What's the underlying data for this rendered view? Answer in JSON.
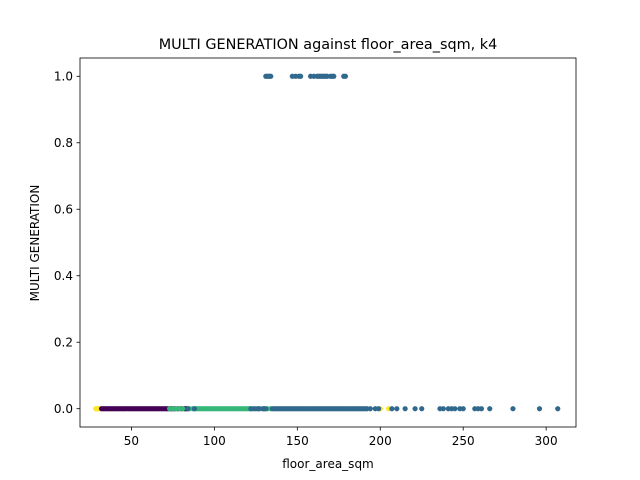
{
  "chart_data": {
    "type": "scatter",
    "title": "MULTI GENERATION against floor_area_sqm, k4",
    "xlabel": "floor_area_sqm",
    "ylabel": "MULTI GENERATION",
    "xlim": [
      19,
      318
    ],
    "ylim": [
      -0.055,
      1.055
    ],
    "xticks": [
      50,
      100,
      150,
      200,
      250,
      300
    ],
    "yticks": [
      0.0,
      0.2,
      0.4,
      0.6,
      0.8,
      1.0
    ],
    "xtick_labels": [
      "50",
      "100",
      "150",
      "200",
      "250",
      "300"
    ],
    "ytick_labels": [
      "0.0",
      "0.2",
      "0.4",
      "0.6",
      "0.8",
      "1.0"
    ],
    "grid": false,
    "legend": "none",
    "series": [
      {
        "color": "#fde725",
        "points": [
          [
            28.5,
            0
          ],
          [
            29,
            0
          ],
          [
            29.5,
            0
          ],
          [
            30,
            0
          ],
          [
            30.5,
            0
          ],
          [
            31,
            0
          ],
          [
            32,
            0
          ],
          [
            200,
            0
          ],
          [
            205,
            0
          ]
        ]
      },
      {
        "color": "#440154",
        "points": [
          [
            32,
            0
          ],
          [
            33,
            0
          ],
          [
            34,
            0
          ],
          [
            35,
            0
          ],
          [
            36,
            0
          ],
          [
            37,
            0
          ],
          [
            38,
            0
          ],
          [
            39,
            0
          ],
          [
            40,
            0
          ],
          [
            41,
            0
          ],
          [
            42,
            0
          ],
          [
            43,
            0
          ],
          [
            44,
            0
          ],
          [
            45,
            0
          ],
          [
            46,
            0
          ],
          [
            47,
            0
          ],
          [
            48,
            0
          ],
          [
            49,
            0
          ],
          [
            50,
            0
          ],
          [
            51,
            0
          ],
          [
            52,
            0
          ],
          [
            53,
            0
          ],
          [
            54,
            0
          ],
          [
            55,
            0
          ],
          [
            56,
            0
          ],
          [
            57,
            0
          ],
          [
            58,
            0
          ],
          [
            59,
            0
          ],
          [
            60,
            0
          ],
          [
            61,
            0
          ],
          [
            62,
            0
          ],
          [
            63,
            0
          ],
          [
            64,
            0
          ],
          [
            65,
            0
          ],
          [
            66,
            0
          ],
          [
            67,
            0
          ],
          [
            68,
            0
          ],
          [
            69,
            0
          ],
          [
            70,
            0
          ],
          [
            71,
            0
          ],
          [
            72,
            0
          ],
          [
            73,
            0
          ],
          [
            74,
            0
          ],
          [
            75,
            0
          ],
          [
            76,
            0
          ],
          [
            78,
            0
          ],
          [
            80,
            0
          ],
          [
            82,
            0
          ],
          [
            83,
            0
          ],
          [
            84,
            0
          ]
        ]
      },
      {
        "color": "#35b779",
        "points": [
          [
            73,
            0
          ],
          [
            75,
            0
          ],
          [
            77,
            0
          ],
          [
            79,
            0
          ],
          [
            81,
            0
          ],
          [
            85,
            0
          ],
          [
            87,
            0
          ],
          [
            88,
            0
          ],
          [
            89,
            0
          ],
          [
            90,
            0
          ],
          [
            91,
            0
          ],
          [
            92,
            0
          ],
          [
            93,
            0
          ],
          [
            94,
            0
          ],
          [
            95,
            0
          ],
          [
            96,
            0
          ],
          [
            97,
            0
          ],
          [
            98,
            0
          ],
          [
            99,
            0
          ],
          [
            100,
            0
          ],
          [
            101,
            0
          ],
          [
            102,
            0
          ],
          [
            103,
            0
          ],
          [
            104,
            0
          ],
          [
            105,
            0
          ],
          [
            106,
            0
          ],
          [
            107,
            0
          ],
          [
            108,
            0
          ],
          [
            109,
            0
          ],
          [
            110,
            0
          ],
          [
            111,
            0
          ],
          [
            112,
            0
          ],
          [
            113,
            0
          ],
          [
            114,
            0
          ],
          [
            115,
            0
          ],
          [
            116,
            0
          ],
          [
            117,
            0
          ],
          [
            118,
            0
          ],
          [
            119,
            0
          ],
          [
            120,
            0
          ],
          [
            121,
            0
          ],
          [
            122,
            0
          ],
          [
            123,
            0
          ],
          [
            125,
            0
          ],
          [
            127,
            0
          ],
          [
            130,
            0
          ],
          [
            132,
            0
          ],
          [
            134,
            0
          ]
        ]
      },
      {
        "color": "#31688e",
        "points": [
          [
            84,
            0
          ],
          [
            88,
            0
          ],
          [
            122,
            0
          ],
          [
            124,
            0
          ],
          [
            126,
            0
          ],
          [
            127,
            0
          ],
          [
            129,
            0
          ],
          [
            130,
            0
          ],
          [
            131,
            0
          ],
          [
            135,
            0
          ],
          [
            136,
            0
          ],
          [
            137,
            0
          ],
          [
            138,
            0
          ],
          [
            139,
            0
          ],
          [
            140,
            0
          ],
          [
            141,
            0
          ],
          [
            142,
            0
          ],
          [
            143,
            0
          ],
          [
            144,
            0
          ],
          [
            145,
            0
          ],
          [
            146,
            0
          ],
          [
            147,
            0
          ],
          [
            148,
            0
          ],
          [
            149,
            0
          ],
          [
            150,
            0
          ],
          [
            151,
            0
          ],
          [
            152,
            0
          ],
          [
            153,
            0
          ],
          [
            154,
            0
          ],
          [
            155,
            0
          ],
          [
            156,
            0
          ],
          [
            157,
            0
          ],
          [
            158,
            0
          ],
          [
            159,
            0
          ],
          [
            160,
            0
          ],
          [
            161,
            0
          ],
          [
            162,
            0
          ],
          [
            163,
            0
          ],
          [
            164,
            0
          ],
          [
            165,
            0
          ],
          [
            166,
            0
          ],
          [
            167,
            0
          ],
          [
            168,
            0
          ],
          [
            169,
            0
          ],
          [
            170,
            0
          ],
          [
            171,
            0
          ],
          [
            172,
            0
          ],
          [
            173,
            0
          ],
          [
            174,
            0
          ],
          [
            175,
            0
          ],
          [
            176,
            0
          ],
          [
            177,
            0
          ],
          [
            178,
            0
          ],
          [
            179,
            0
          ],
          [
            180,
            0
          ],
          [
            181,
            0
          ],
          [
            182,
            0
          ],
          [
            183,
            0
          ],
          [
            184,
            0
          ],
          [
            185,
            0
          ],
          [
            186,
            0
          ],
          [
            187,
            0
          ],
          [
            188,
            0
          ],
          [
            189,
            0
          ],
          [
            190,
            0
          ],
          [
            191,
            0
          ],
          [
            192,
            0
          ],
          [
            194,
            0
          ],
          [
            197,
            0
          ],
          [
            199,
            0
          ],
          [
            207,
            0
          ],
          [
            210,
            0
          ],
          [
            215,
            0
          ],
          [
            221,
            0
          ],
          [
            225,
            0
          ],
          [
            236,
            0
          ],
          [
            238,
            0
          ],
          [
            241,
            0
          ],
          [
            243,
            0
          ],
          [
            245,
            0
          ],
          [
            248,
            0
          ],
          [
            250,
            0
          ],
          [
            257,
            0
          ],
          [
            259,
            0
          ],
          [
            261,
            0
          ],
          [
            266,
            0
          ],
          [
            280,
            0
          ],
          [
            296,
            0
          ],
          [
            307,
            0
          ],
          [
            131,
            1
          ],
          [
            132,
            1
          ],
          [
            133,
            1
          ],
          [
            134,
            1
          ],
          [
            147,
            1
          ],
          [
            149,
            1
          ],
          [
            151,
            1
          ],
          [
            152,
            1
          ],
          [
            158,
            1
          ],
          [
            160,
            1
          ],
          [
            162,
            1
          ],
          [
            163,
            1
          ],
          [
            164,
            1
          ],
          [
            165,
            1
          ],
          [
            166,
            1
          ],
          [
            167,
            1
          ],
          [
            168,
            1
          ],
          [
            170,
            1
          ],
          [
            171,
            1
          ],
          [
            172,
            1
          ],
          [
            178,
            1
          ],
          [
            179,
            1
          ]
        ]
      }
    ]
  }
}
